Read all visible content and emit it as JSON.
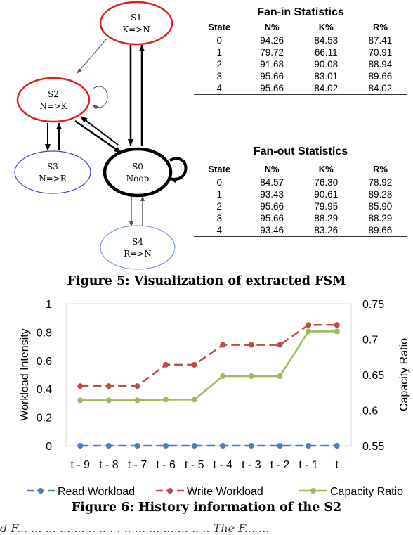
{
  "fsm": {
    "nodes": [
      {
        "id": "S1",
        "name": "S1",
        "label": "K=>N",
        "color": "#e02020"
      },
      {
        "id": "S2",
        "name": "S2",
        "label": "N=>K",
        "color": "#e02020"
      },
      {
        "id": "S3",
        "name": "S3",
        "label": "N=>R",
        "color": "#3344dd"
      },
      {
        "id": "S0",
        "name": "S0",
        "label": "Noop",
        "color": "#000000"
      },
      {
        "id": "S4",
        "name": "S4",
        "label": "R=>N",
        "color": "#6688ee"
      }
    ]
  },
  "fan_in": {
    "title": "Fan-in Statistics",
    "headers": [
      "State",
      "N%",
      "K%",
      "R%"
    ],
    "rows": [
      [
        "0",
        "94.26",
        "84.53",
        "87.41"
      ],
      [
        "1",
        "79.72",
        "66.11",
        "70.91"
      ],
      [
        "2",
        "91.68",
        "90.08",
        "88.94"
      ],
      [
        "3",
        "95.66",
        "83.01",
        "89.66"
      ],
      [
        "4",
        "95.66",
        "84.02",
        "84.02"
      ]
    ]
  },
  "fan_out": {
    "title": "Fan-out Statistics",
    "headers": [
      "State",
      "N%",
      "K%",
      "R%"
    ],
    "rows": [
      [
        "0",
        "84.57",
        "76.30",
        "78.92"
      ],
      [
        "1",
        "93.43",
        "90.61",
        "89.28"
      ],
      [
        "2",
        "95.66",
        "79.95",
        "85.90"
      ],
      [
        "3",
        "95.66",
        "88.29",
        "88.29"
      ],
      [
        "4",
        "93.46",
        "83.26",
        "89.66"
      ]
    ]
  },
  "figure5_caption": "Figure 5: Visualization of extracted FSM",
  "chart_data": {
    "type": "line",
    "categories": [
      "t - 9",
      "t - 8",
      "t - 7",
      "t - 6",
      "t - 5",
      "t - 4",
      "t - 3",
      "t - 2",
      "t - 1",
      "t"
    ],
    "ylabel": "Workload Intensity",
    "ylabel_right": "Capacity Ratio",
    "ylim": [
      0,
      1
    ],
    "ylim_right": [
      0.55,
      0.75
    ],
    "yticks": [
      "0",
      "0.2",
      "0.4",
      "0.6",
      "0.8",
      "1"
    ],
    "yticks_right": [
      "0.55",
      "0.6",
      "0.65",
      "0.7",
      "0.75"
    ],
    "series": [
      {
        "name": "Read Workload",
        "axis": "left",
        "color": "#4a7ebb",
        "dash": true,
        "values": [
          0,
          0,
          0,
          0,
          0,
          0,
          0,
          0,
          0,
          0
        ]
      },
      {
        "name": "Write Workload",
        "axis": "left",
        "color": "#be4b48",
        "dash": true,
        "values": [
          0.42,
          0.42,
          0.42,
          0.57,
          0.57,
          0.71,
          0.71,
          0.71,
          0.85,
          0.85
        ]
      },
      {
        "name": "Capacity Ratio",
        "axis": "right",
        "color": "#9bbb59",
        "dash": false,
        "values": [
          0.614,
          0.614,
          0.614,
          0.615,
          0.615,
          0.648,
          0.648,
          0.648,
          0.711,
          0.711
        ]
      }
    ]
  },
  "figure6_caption": "Figure 6: History information of the S2",
  "cut_text": "d F... ... ... ... ... .. .. . . .. ... ... ... ... .. .. The F... ..."
}
